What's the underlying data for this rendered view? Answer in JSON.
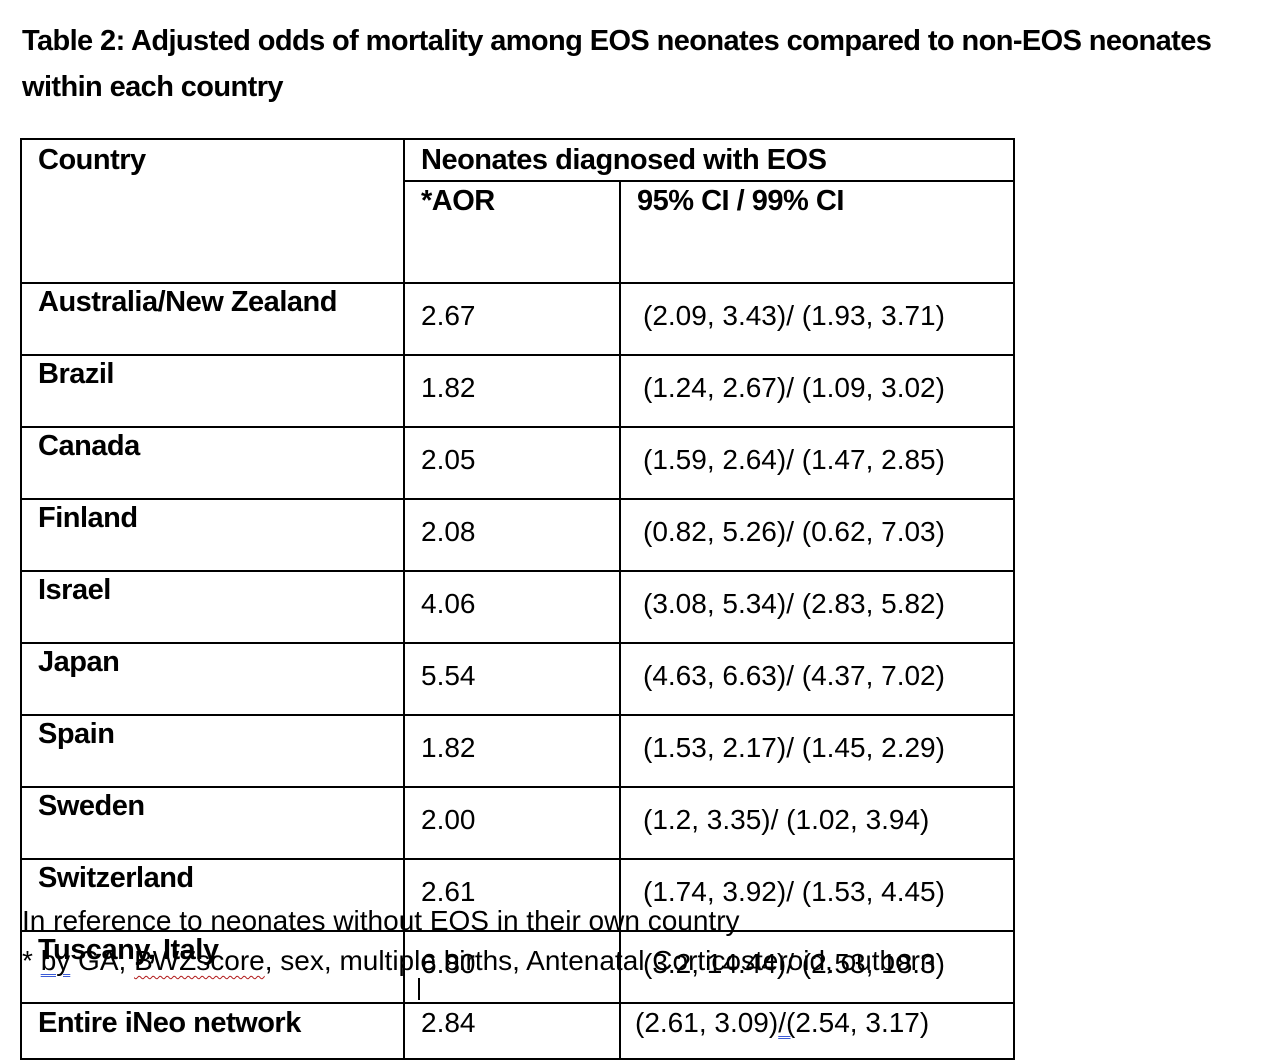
{
  "title": "Table 2: Adjusted odds of mortality among EOS neonates compared to non-EOS neonates within each country",
  "table": {
    "header_country": "Country",
    "header_group": "Neonates diagnosed with EOS",
    "header_aor": "*AOR",
    "header_ci": "95% CI / 99% CI",
    "rows": [
      {
        "country": "Australia/New Zealand",
        "aor": "2.67",
        "ci": "(2.09, 3.43)/ (1.93, 3.71)"
      },
      {
        "country": "Brazil",
        "aor": "1.82",
        "ci": "(1.24, 2.67)/ (1.09, 3.02)"
      },
      {
        "country": "Canada",
        "aor": "2.05",
        "ci": "(1.59, 2.64)/ (1.47, 2.85)"
      },
      {
        "country": "Finland",
        "aor": "2.08",
        "ci": "(0.82, 5.26)/ (0.62, 7.03)"
      },
      {
        "country": "Israel",
        "aor": "4.06",
        "ci": "(3.08, 5.34)/ (2.83, 5.82)"
      },
      {
        "country": "Japan",
        "aor": "5.54",
        "ci": "(4.63, 6.63)/ (4.37, 7.02)"
      },
      {
        "country": "Spain",
        "aor": "1.82",
        "ci": "(1.53, 2.17)/ (1.45, 2.29)"
      },
      {
        "country": "Sweden",
        "aor": "2.00",
        "ci": "(1.2, 3.35)/ (1.02, 3.94)"
      },
      {
        "country": "Switzerland",
        "aor": "2.61",
        "ci": "(1.74, 3.92)/ (1.53, 4.45)"
      },
      {
        "country": "Tuscany, Italy",
        "aor": "6.80",
        "ci": "(3.2, 14.44)/ (2.53, 18.3)"
      }
    ],
    "total": {
      "country": "Entire iNeo network",
      "aor": "2.84",
      "ci_a": "(2.61, 3.09)",
      "ci_sep": "/(",
      "ci_b": "2.54, 3.17)"
    }
  },
  "footnotes": {
    "line1": "In reference to neonates without EOS in their own country",
    "line2_star": "* ",
    "line2_by": "by",
    "line2_ga": " GA, ",
    "line2_bwz": "BWZscore",
    "line2_rest": ", sex, multiple births, Antenatal Corticosteroid, outborn"
  }
}
